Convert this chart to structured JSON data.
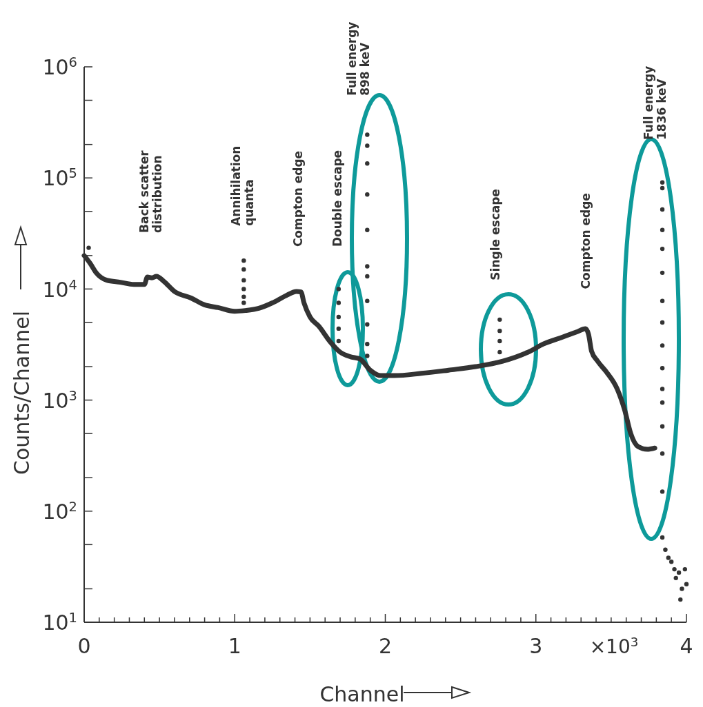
{
  "chart_data": {
    "type": "line",
    "xlabel": "Channel",
    "ylabel": "Counts/Channel",
    "log": "y",
    "xlim": [
      0,
      4
    ],
    "ylim": [
      10,
      1000000
    ],
    "xticks": [
      0,
      {
        "value": 0.1,
        "label": null
      },
      {
        "value": 0.2,
        "label": null
      },
      {
        "value": 0.3,
        "label": null
      },
      {
        "value": 0.4,
        "label": null
      },
      {
        "value": 0.5,
        "label": null
      },
      {
        "value": 0.6,
        "label": null
      },
      {
        "value": 0.7,
        "label": null
      },
      {
        "value": 0.8,
        "label": null
      },
      {
        "value": 0.9,
        "label": null
      },
      1,
      {
        "value": 1.1,
        "label": null
      },
      {
        "value": 1.2,
        "label": null
      },
      {
        "value": 1.3,
        "label": null
      },
      {
        "value": 1.4,
        "label": null
      },
      {
        "value": 1.5,
        "label": null
      },
      {
        "value": 1.6,
        "label": null
      },
      {
        "value": 1.7,
        "label": null
      },
      {
        "value": 1.8,
        "label": null
      },
      {
        "value": 1.9,
        "label": null
      },
      2,
      {
        "value": 2.1,
        "label": null
      },
      {
        "value": 2.2,
        "label": null
      },
      {
        "value": 2.3,
        "label": null
      },
      {
        "value": 2.4,
        "label": null
      },
      {
        "value": 2.5,
        "label": null
      },
      {
        "value": 2.6,
        "label": null
      },
      {
        "value": 2.7,
        "label": null
      },
      {
        "value": 2.8,
        "label": null
      },
      {
        "value": 2.9,
        "label": null
      },
      3,
      {
        "value": 3.1,
        "label": null
      },
      {
        "value": 3.2,
        "label": null
      },
      {
        "value": 3.3,
        "label": null
      },
      {
        "value": 3.4,
        "label": null
      },
      {
        "value": 3.5,
        "label": null
      },
      {
        "value": 3.6,
        "label": null
      },
      {
        "value": 3.7,
        "label": null
      },
      {
        "value": 3.8,
        "label": null
      },
      {
        "value": 3.9,
        "label": null
      },
      4
    ],
    "yticks": [
      {
        "value": 10,
        "label": "10$^{1}$"
      },
      {
        "value": 20,
        "label": null
      },
      {
        "value": 50,
        "label": null
      },
      {
        "value": 100,
        "label": "10$^{2}$"
      },
      {
        "value": 200,
        "label": null
      },
      {
        "value": 500,
        "label": null
      },
      {
        "value": 1000,
        "label": "10$^{3}$"
      },
      {
        "value": 2000,
        "label": null
      },
      {
        "value": 5000,
        "label": null
      },
      {
        "value": 10000,
        "label": "10$^{4}$"
      },
      {
        "value": 20000,
        "label": null
      },
      {
        "value": 50000,
        "label": null
      },
      {
        "value": 100000,
        "label": "10$^{5}$"
      },
      {
        "value": 200000,
        "label": null
      },
      {
        "value": 500000,
        "label": null
      },
      {
        "value": 1000000,
        "label": "10$^{6}$"
      }
    ],
    "series": [
      {
        "color": "#333333",
        "x": [
          0,
          0.04,
          0.08,
          0.15,
          0.24,
          0.33,
          0.4,
          0.42,
          0.45,
          0.48,
          0.53,
          0.6,
          0.71,
          0.8,
          0.89,
          1,
          1.07,
          1.16,
          1.25,
          1.34,
          1.41,
          1.44,
          1.46,
          1.5,
          1.56,
          1.63,
          1.7,
          1.77,
          1.83,
          1.9,
          1.97,
          2.06,
          2.24,
          2.42,
          2.6,
          2.78,
          2.96,
          3.05,
          3.18,
          3.27,
          3.33,
          3.35,
          3.37,
          3.41,
          3.47,
          3.54,
          3.59,
          3.63,
          3.68,
          3.74,
          3.79
        ],
        "values": [
          20000,
          17000,
          14000,
          12000,
          11500,
          11000,
          11000,
          12800,
          12600,
          13000,
          11700,
          9500,
          8300,
          7200,
          6800,
          6300,
          6400,
          6700,
          7500,
          8700,
          9500,
          9400,
          7500,
          5600,
          4600,
          3400,
          2700,
          2450,
          2350,
          1860,
          1660,
          1660,
          1740,
          1860,
          2000,
          2240,
          2750,
          3200,
          3700,
          4100,
          4400,
          3900,
          2750,
          2240,
          1780,
          1260,
          810,
          500,
          380,
          360,
          370
        ]
      },
      {
        "type": "scatter",
        "color": "#333333",
        "x": [
          0.03,
          1.06,
          1.06,
          1.06,
          1.06,
          1.06,
          1.06,
          1.69,
          1.69,
          1.69,
          1.69,
          1.69,
          1.88,
          1.88,
          1.88,
          1.88,
          1.88,
          1.88,
          1.88,
          1.88,
          1.88,
          1.88,
          1.88,
          2.76,
          2.76,
          2.76,
          2.76,
          3.84,
          3.84,
          3.84,
          3.84,
          3.84,
          3.84,
          3.84,
          3.84,
          3.84,
          3.84,
          3.84,
          3.84,
          3.84,
          3.84,
          3.84,
          3.84,
          3.86,
          3.88,
          3.9,
          3.92,
          3.93,
          3.95,
          3.96,
          3.97,
          3.99,
          4
        ],
        "values": [
          23500,
          18000,
          15000,
          12000,
          10000,
          8500,
          7500,
          10000,
          7500,
          5600,
          4400,
          3400,
          245000,
          195000,
          135000,
          71000,
          34000,
          16000,
          13000,
          7800,
          4800,
          3200,
          2500,
          5300,
          4200,
          3400,
          2700,
          91000,
          81000,
          52000,
          34000,
          23000,
          14000,
          7800,
          5000,
          3100,
          1940,
          1260,
          950,
          580,
          330,
          150,
          58,
          45,
          38,
          35,
          30,
          25,
          28,
          16,
          20,
          30,
          22
        ]
      }
    ],
    "annotations": [
      "Back scatter\ndistribution",
      "Annihilation\nquanta",
      "Compton edge",
      "Double escape",
      "Full energy\n898 keV",
      "Single escape",
      "Compton edge",
      "Full energy\n1836 keV",
      "×10$^{3}$"
    ]
  }
}
